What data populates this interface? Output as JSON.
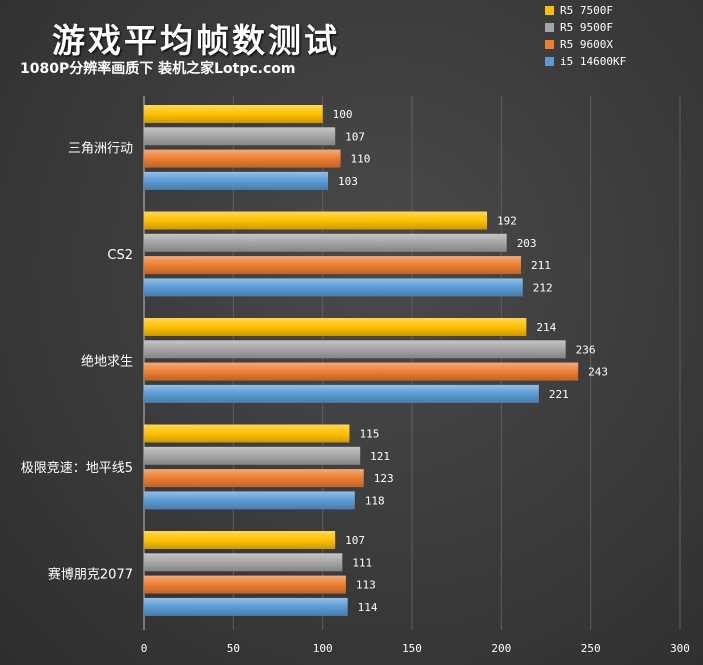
{
  "chart_data": {
    "type": "bar",
    "orientation": "horizontal",
    "title": "游戏平均帧数测试",
    "subtitle": "1080P分辨率画质下 装机之家Lotpc.com",
    "categories": [
      "三角洲行动",
      "CS2",
      "绝地求生",
      "极限竞速：地平线5",
      "赛博朋克2077"
    ],
    "series": [
      {
        "name": "R5 7500F",
        "color": "#ffc000",
        "values": [
          100,
          192,
          214,
          115,
          107
        ]
      },
      {
        "name": "R5 9500F",
        "color": "#a5a5a5",
        "values": [
          107,
          203,
          236,
          121,
          111
        ]
      },
      {
        "name": "R5 9600X",
        "color": "#ed7d31",
        "values": [
          110,
          211,
          243,
          123,
          113
        ]
      },
      {
        "name": "i5 14600KF",
        "color": "#5b9bd5",
        "values": [
          103,
          212,
          221,
          118,
          114
        ]
      }
    ],
    "xlim": [
      0,
      300
    ],
    "xticks": [
      0,
      50,
      100,
      150,
      200,
      250,
      300
    ],
    "grid": true,
    "legend": "top-right"
  }
}
